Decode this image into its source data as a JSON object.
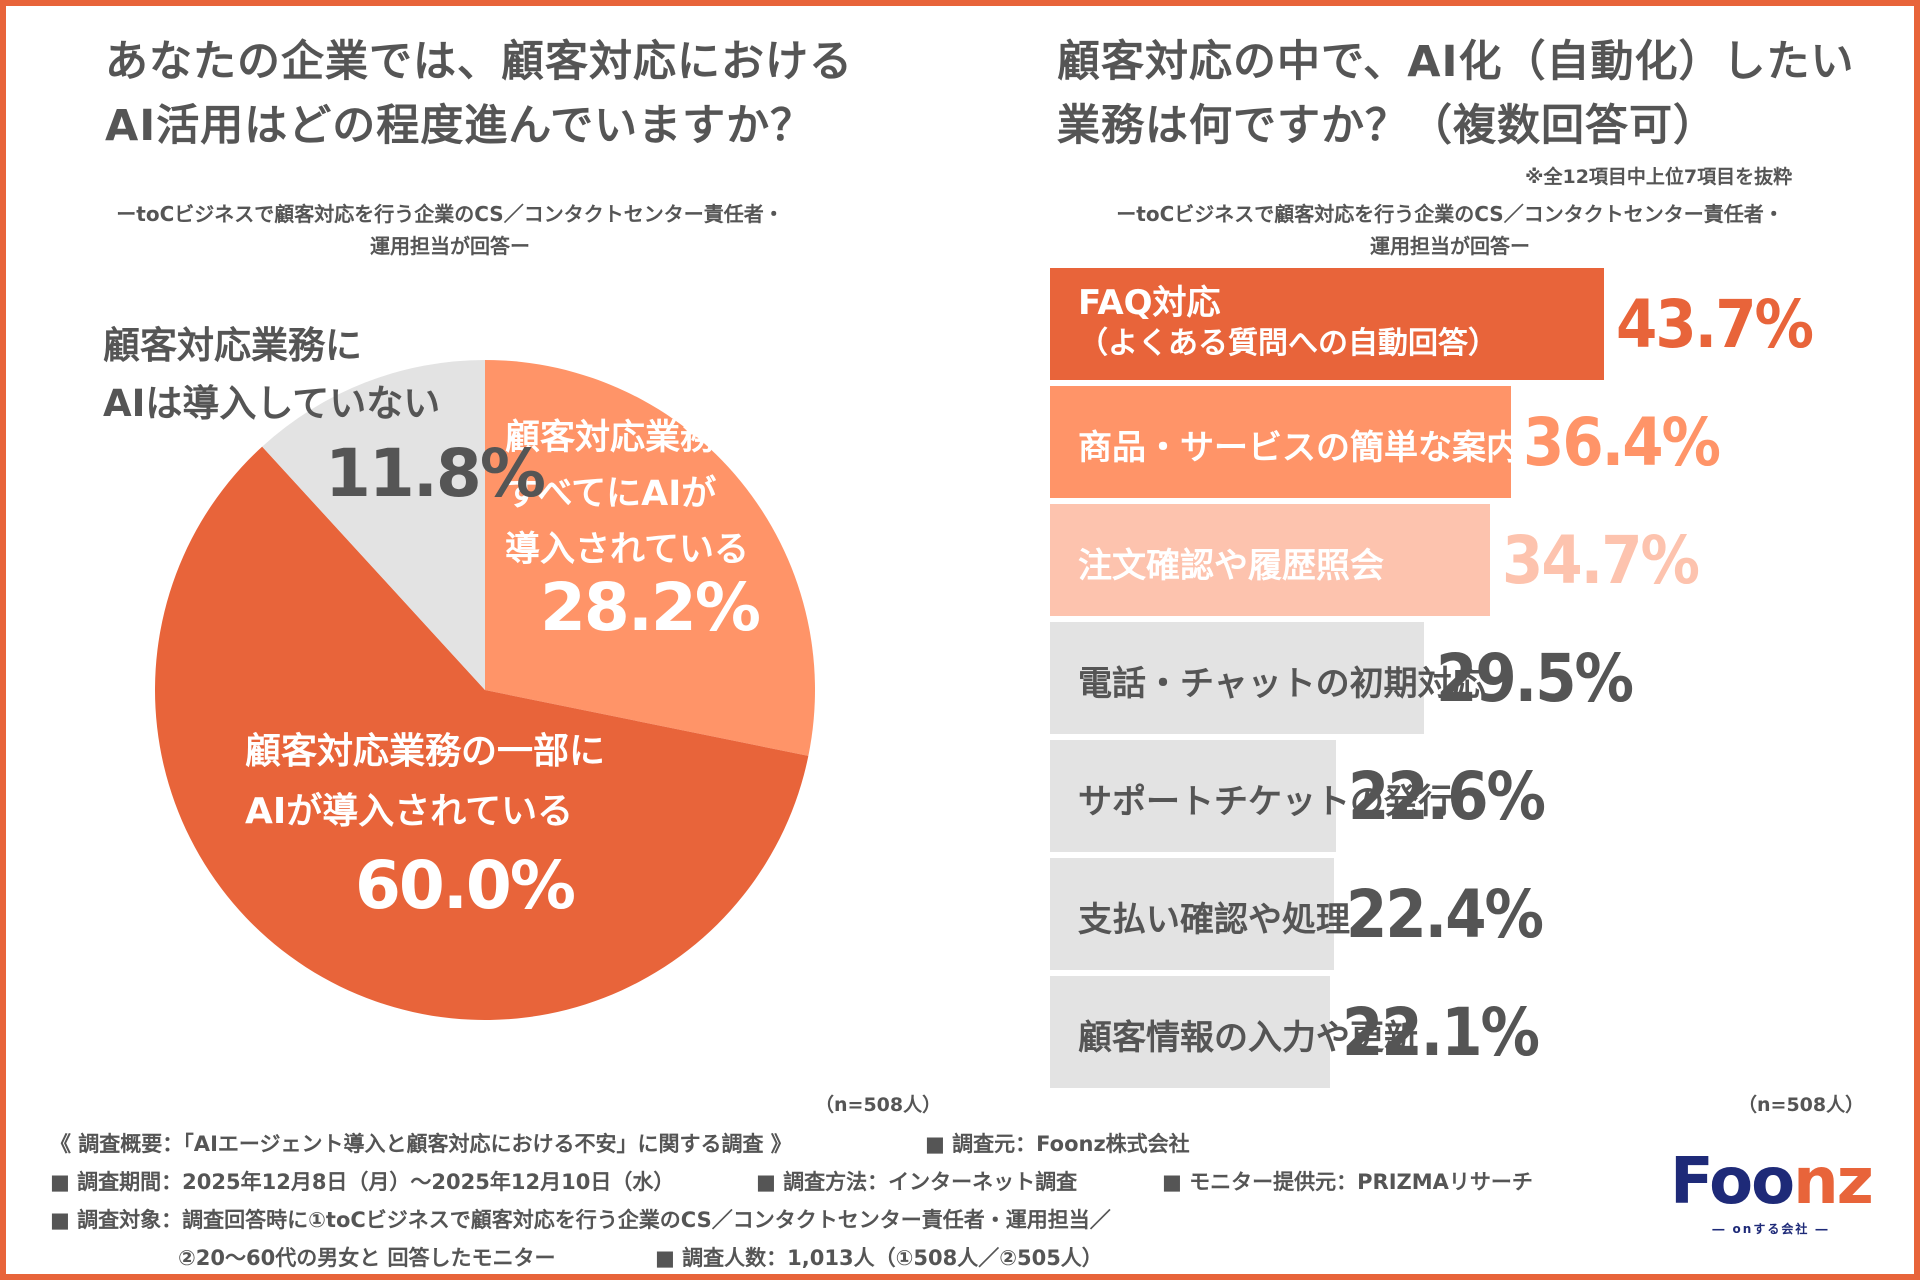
{
  "left": {
    "title_line1": "あなたの企業では、顧客対応における",
    "title_line2": "AI活用はどの程度進んでいますか？",
    "subtitle_line1": "ーtoCビジネスで顧客対応を行う企業のCS／コンタクトセンター責任者・",
    "subtitle_line2": "運用担当が回答ー",
    "n_label": "（n=508人）"
  },
  "right": {
    "title_line1": "顧客対応の中で、AI化（自動化）したい",
    "title_line2": "業務は何ですか？（複数回答可）",
    "note": "※全12項目中上位7項目を抜粋",
    "subtitle_line1": "ーtoCビジネスで顧客対応を行う企業のCS／コンタクトセンター責任者・",
    "subtitle_line2": "運用担当が回答ー",
    "n_label": "（n=508人）"
  },
  "chart_data": [
    {
      "type": "pie",
      "title": "あなたの企業では、顧客対応におけるAI活用はどの程度進んでいますか？",
      "slices": [
        {
          "label_line1": "顧客対応業務の",
          "label_line2": "すべてにAIが",
          "label_line3": "導入されている",
          "value": 28.2,
          "value_label": "28.2%",
          "color": "#FF9468"
        },
        {
          "label_line1": "顧客対応業務の一部に",
          "label_line2": "AIが導入されている",
          "value": 60.0,
          "value_label": "60.0%",
          "color": "#E8643A"
        },
        {
          "label_line1": "顧客対応業務に",
          "label_line2": "AIは導入していない",
          "value": 11.8,
          "value_label": "11.8%",
          "color": "#E3E3E3"
        }
      ]
    },
    {
      "type": "bar",
      "orientation": "horizontal",
      "title": "顧客対応の中で、AI化（自動化）したい業務は何ですか？（複数回答可）",
      "xlim": [
        0,
        60
      ],
      "bars": [
        {
          "label": "FAQ対応",
          "label_sub": "（よくある質問への自動回答）",
          "value": 43.7,
          "value_label": "43.7%",
          "color": "#E8643A",
          "text_color": "#ffffff",
          "value_color": "#E8643A"
        },
        {
          "label": "商品・サービスの簡単な案内",
          "value": 36.4,
          "value_label": "36.4%",
          "color": "#FF9468",
          "text_color": "#ffffff",
          "value_color": "#FF9468"
        },
        {
          "label": "注文確認や履歴照会",
          "value": 34.7,
          "value_label": "34.7%",
          "color": "#FDC3AE",
          "text_color": "#ffffff",
          "value_color": "#FDC3AE"
        },
        {
          "label": "電話・チャットの初期対応",
          "value": 29.5,
          "value_label": "29.5%",
          "color": "#E3E3E3",
          "text_color": "#555555",
          "value_color": "#555555"
        },
        {
          "label": "サポートチケットの発行",
          "value": 22.6,
          "value_label": "22.6%",
          "color": "#E3E3E3",
          "text_color": "#555555",
          "value_color": "#555555"
        },
        {
          "label": "支払い確認や処理",
          "value": 22.4,
          "value_label": "22.4%",
          "color": "#E3E3E3",
          "text_color": "#555555",
          "value_color": "#555555"
        },
        {
          "label": "顧客情報の入力や更新",
          "value": 22.1,
          "value_label": "22.1%",
          "color": "#E3E3E3",
          "text_color": "#555555",
          "value_color": "#555555"
        }
      ]
    }
  ],
  "footer": {
    "overview": "《 調査概要：「AIエージェント導入と顧客対応における不安」に関する調査 》",
    "source": "■ 調査元：Foonz株式会社",
    "period": "■ 調査期間：2025年12月8日（月）〜2025年12月10日（水）",
    "method": "■ 調査方法：インターネット調査",
    "monitor": "■ モニター提供元：PRIZMAリサーチ",
    "target_line1": "■ 調査対象：調査回答時に①toCビジネスで顧客対応を行う企業のCS／コンタクトセンター責任者・運用担当／",
    "target_line2": "②20〜60代の男女と 回答したモニター",
    "count": "■ 調査人数：1,013人（①508人／②505人）"
  },
  "logo": {
    "word_part1": "Foo",
    "word_part2": "nz",
    "tagline": "― onする会社 ―",
    "brand_color": "#1E2A78",
    "accent_color": "#E8643A"
  }
}
